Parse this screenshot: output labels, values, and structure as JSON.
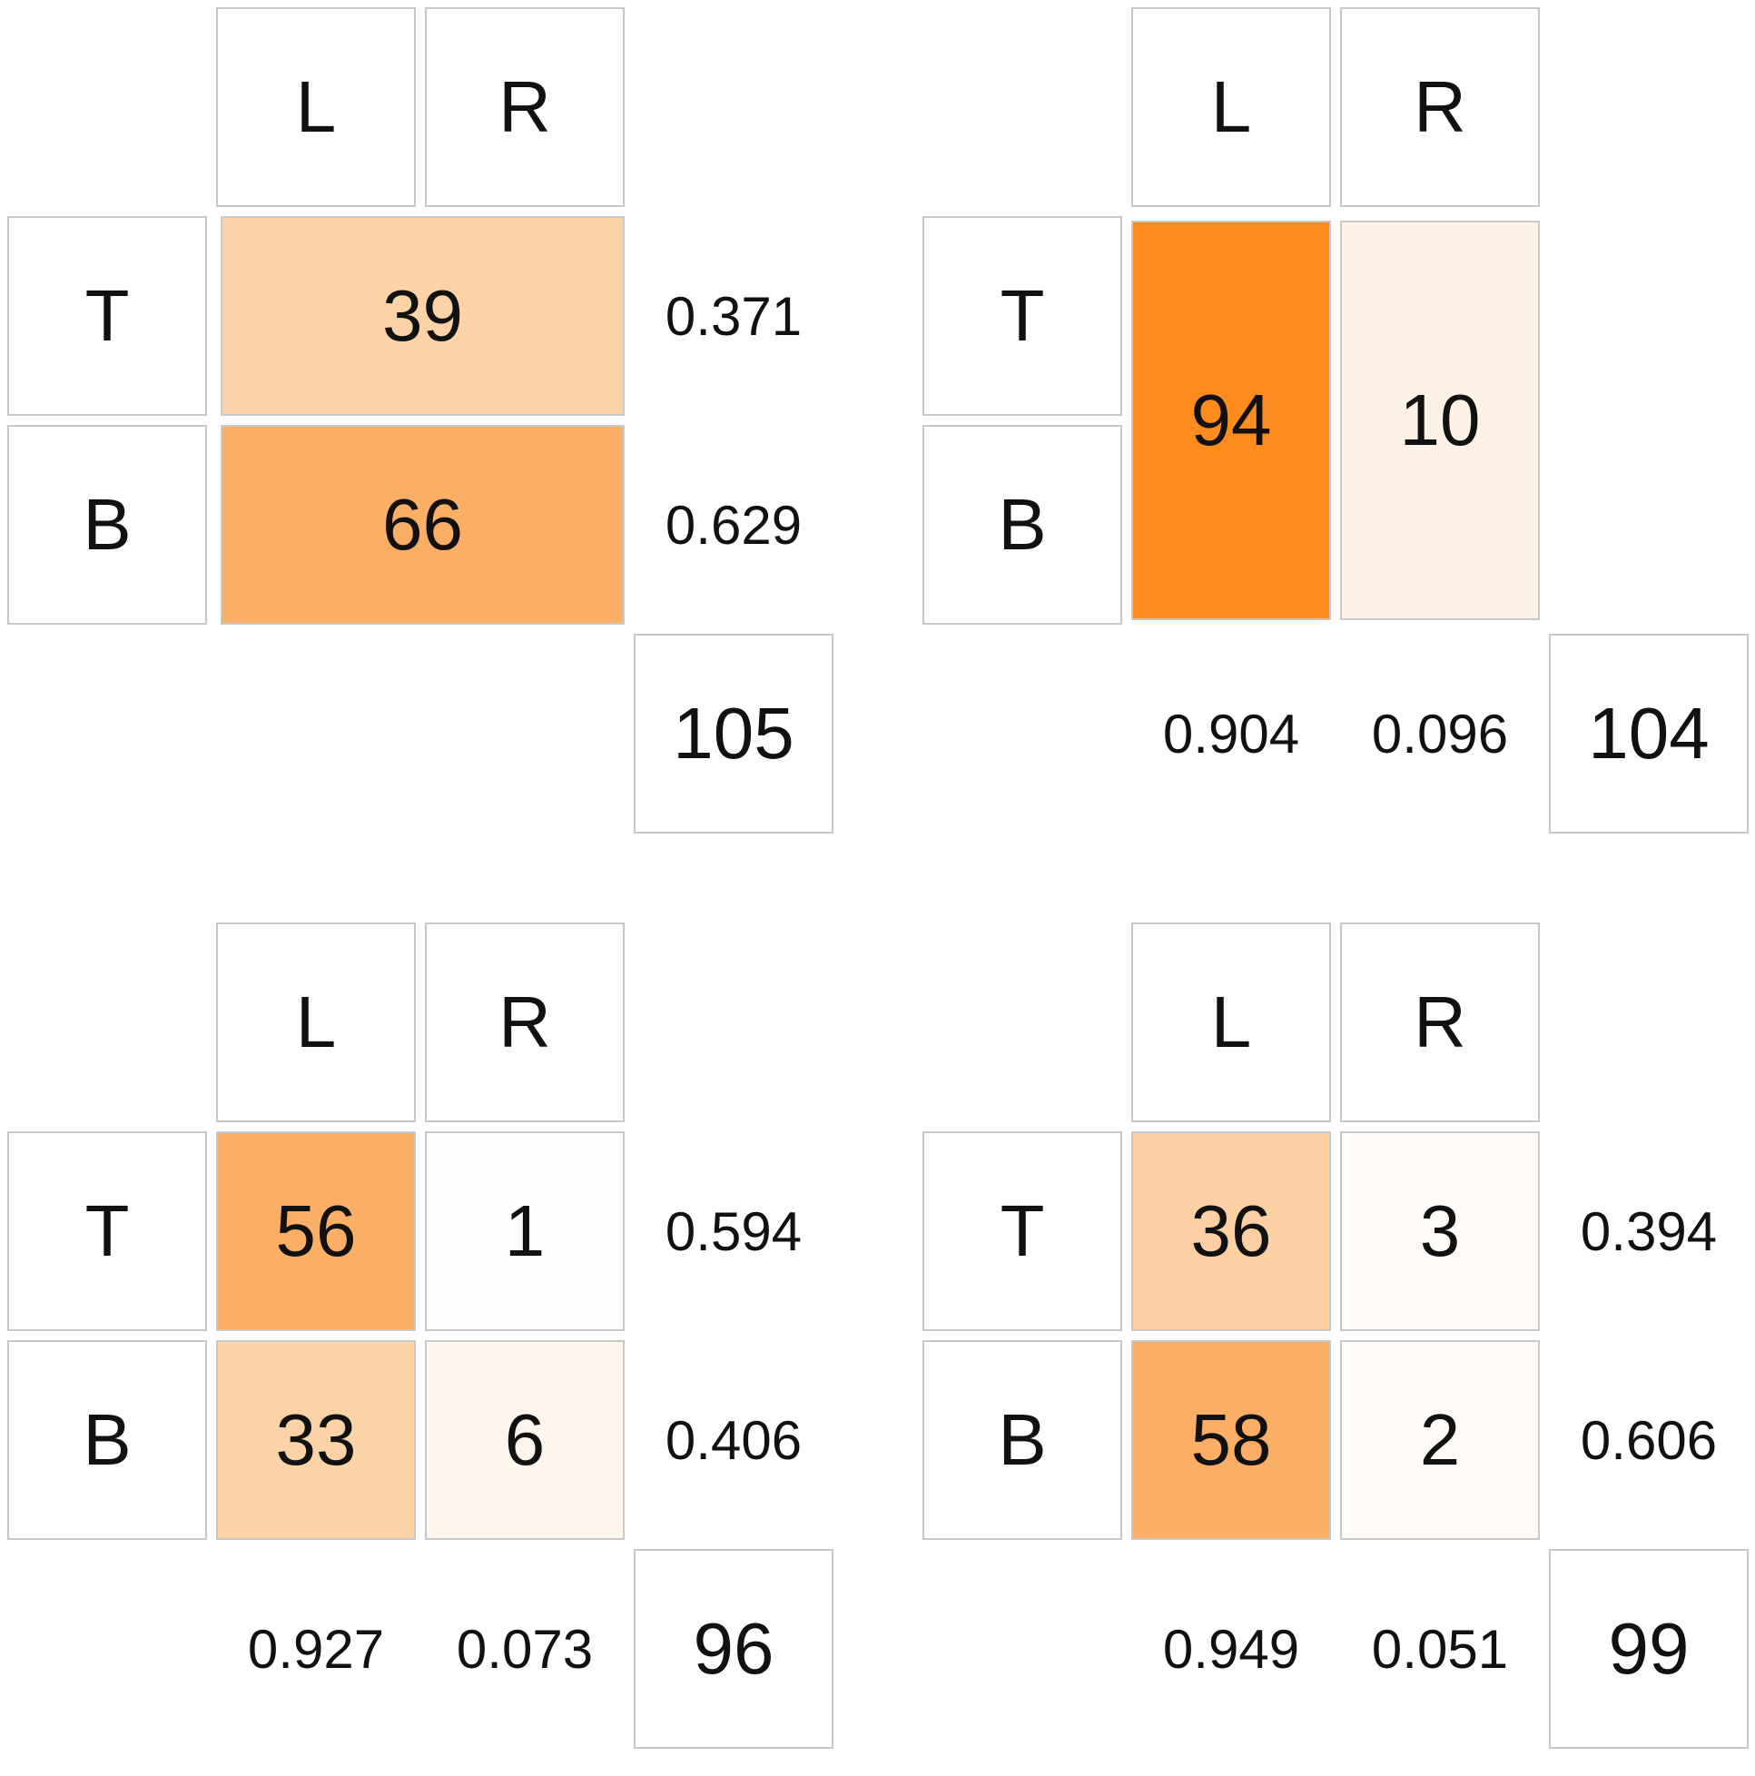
{
  "panels": [
    {
      "col_headers": [
        "L",
        "R"
      ],
      "row_headers": [
        "T",
        "B"
      ],
      "cells": [
        [
          "39"
        ],
        [
          "66"
        ]
      ],
      "cell_colors": [
        [
          "#fcd3a6"
        ],
        [
          "#fbaf66"
        ]
      ],
      "row_props": [
        "0.371",
        "0.629"
      ],
      "col_props": [],
      "total": "105"
    },
    {
      "col_headers": [
        "L",
        "R"
      ],
      "row_headers": [
        "T",
        "B"
      ],
      "cells": [
        [
          "94",
          "10"
        ]
      ],
      "cell_colors": [
        [
          "#fd8b1e",
          "#fdf2e5"
        ]
      ],
      "row_props": [],
      "col_props": [
        "0.904",
        "0.096"
      ],
      "total": "104"
    },
    {
      "col_headers": [
        "L",
        "R"
      ],
      "row_headers": [
        "T",
        "B"
      ],
      "cells": [
        [
          "56",
          "1"
        ],
        [
          "33",
          "6"
        ]
      ],
      "cell_colors": [
        [
          "#fbaf66",
          "#fffdfb"
        ],
        [
          "#fcd3a6",
          "#fef5ec"
        ]
      ],
      "row_props": [
        "0.594",
        "0.406"
      ],
      "col_props": [
        "0.927",
        "0.073"
      ],
      "total": "96"
    },
    {
      "col_headers": [
        "L",
        "R"
      ],
      "row_headers": [
        "T",
        "B"
      ],
      "cells": [
        [
          "36",
          "3"
        ],
        [
          "58",
          "2"
        ]
      ],
      "cell_colors": [
        [
          "#fcd0a2",
          "#fffcf8"
        ],
        [
          "#fbaf66",
          "#fffcf8"
        ]
      ],
      "row_props": [
        "0.394",
        "0.606"
      ],
      "col_props": [
        "0.949",
        "0.051"
      ],
      "total": "99"
    }
  ]
}
